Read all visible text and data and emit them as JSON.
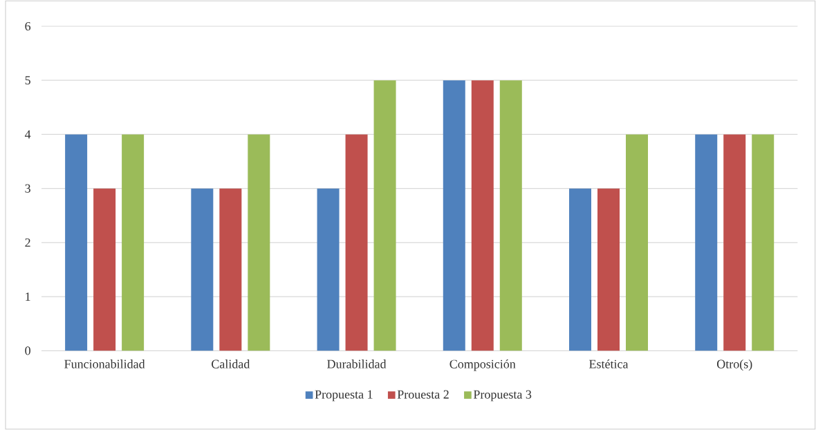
{
  "chart_data": {
    "type": "bar",
    "categories": [
      "Funcionabilidad",
      "Calidad",
      "Durabilidad",
      "Composición",
      "Estética",
      "Otro(s)"
    ],
    "series": [
      {
        "name": "Propuesta 1",
        "color": "#4f81bd",
        "values": [
          4,
          3,
          3,
          5,
          3,
          4
        ]
      },
      {
        "name": "Prouesta 2",
        "color": "#c0504d",
        "values": [
          3,
          3,
          4,
          5,
          3,
          4
        ]
      },
      {
        "name": "Propuesta 3",
        "color": "#9bbb59",
        "values": [
          4,
          4,
          5,
          5,
          4,
          4
        ]
      }
    ],
    "ylim": [
      0,
      6
    ],
    "yticks": [
      0,
      1,
      2,
      3,
      4,
      5,
      6
    ],
    "grid": "y",
    "legend": "bottom"
  }
}
